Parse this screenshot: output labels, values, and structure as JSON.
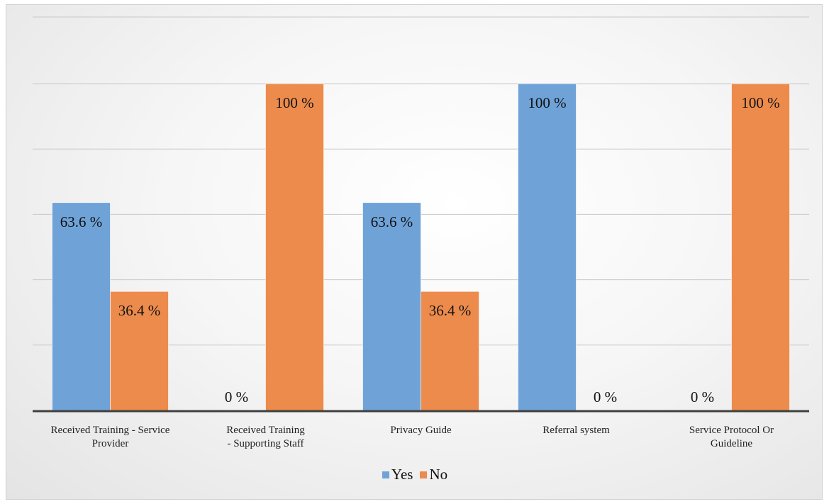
{
  "chart_data": {
    "type": "bar",
    "title": "",
    "xlabel": "",
    "ylabel": "",
    "categories": [
      [
        "Received Training -  Service",
        "Provider"
      ],
      [
        "Received Training",
        "- Supporting Staff"
      ],
      [
        "Privacy Guide"
      ],
      [
        "Referral system"
      ],
      [
        "Service Protocol Or",
        "Guideline"
      ]
    ],
    "series": [
      {
        "name": "Yes",
        "color": "#6fa3d8",
        "values": [
          63.6,
          0,
          63.6,
          100,
          0
        ],
        "labels": [
          "63.6 %",
          "0 %",
          "63.6 %",
          "100 %",
          "0 %"
        ]
      },
      {
        "name": "No",
        "color": "#ec8b4c",
        "values": [
          36.4,
          100,
          36.4,
          0,
          100
        ],
        "labels": [
          "36.4 %",
          "100 %",
          "36.4 %",
          "0 %",
          "100 %"
        ]
      }
    ],
    "ylim": [
      0,
      100
    ],
    "grid": true,
    "legend_position": "bottom"
  }
}
